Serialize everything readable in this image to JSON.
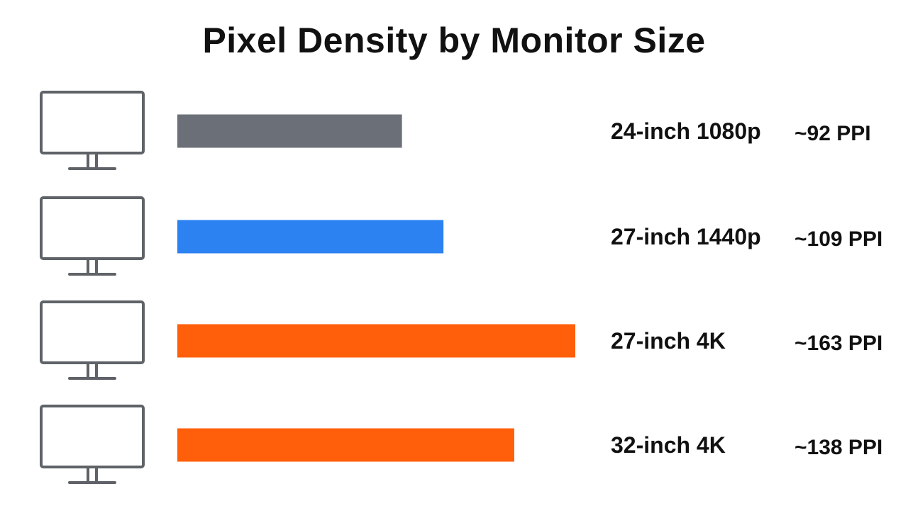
{
  "chart_data": {
    "type": "bar",
    "orientation": "horizontal",
    "title": "Pixel Density by Monitor Size",
    "categories": [
      "24-inch 1080p",
      "27-inch 1440p",
      "27-inch 4K",
      "32-inch 4K"
    ],
    "values": [
      92,
      109,
      163,
      138
    ],
    "value_labels": [
      "~92 PPI",
      "~109 PPI",
      "~163 PPI",
      "~138 PPI"
    ],
    "unit": "PPI",
    "bar_colors": [
      "#6b7078",
      "#2b82f0",
      "#ff5f0a",
      "#ff5f0a"
    ],
    "icon": "monitor-icon",
    "xlim": [
      0,
      163
    ],
    "grid": false,
    "legend": "none"
  },
  "colors": {
    "text": "#111111",
    "icon_stroke": "#5f6368",
    "background": "#ffffff"
  }
}
